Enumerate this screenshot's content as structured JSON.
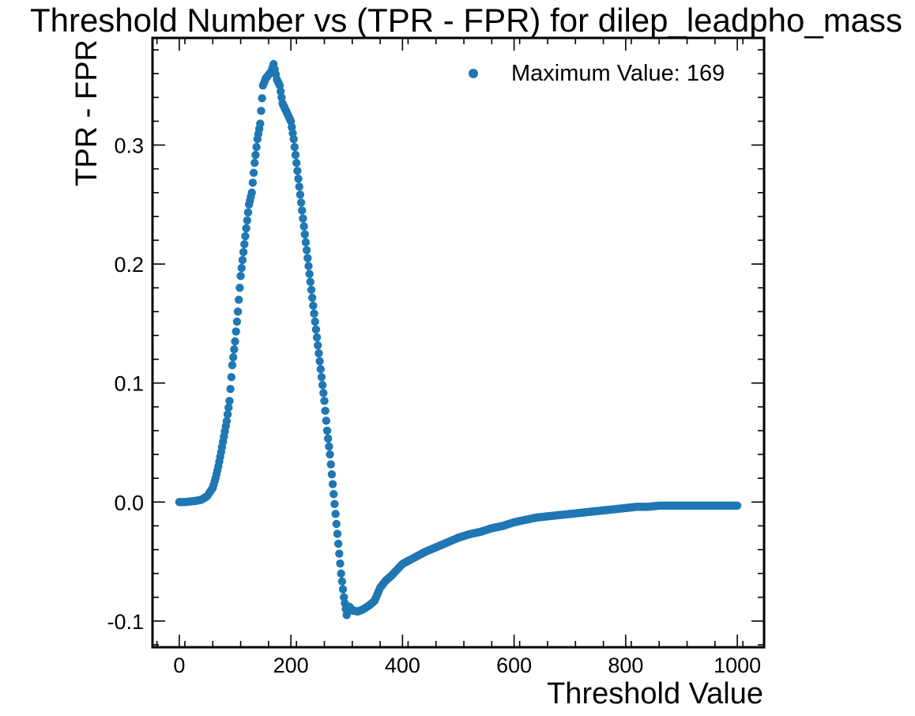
{
  "chart_data": {
    "type": "scatter",
    "title": "Threshold Number vs (TPR - FPR) for dilep_leadpho_mass",
    "xlabel": "Threshold Value",
    "ylabel": "TPR - FPR",
    "xlim": [
      -48,
      1048
    ],
    "ylim": [
      -0.122,
      0.39
    ],
    "xticks": [
      0,
      200,
      400,
      600,
      800,
      1000
    ],
    "xtick_labels": [
      "0",
      "200",
      "400",
      "600",
      "800",
      "1000"
    ],
    "yticks": [
      -0.1,
      0.0,
      0.1,
      0.2,
      0.3
    ],
    "ytick_labels": [
      "-0.1",
      "0.0",
      "0.1",
      "0.2",
      "0.3"
    ],
    "grid": false,
    "legend_position": "top-right",
    "legend": [
      "Maximum Value:  169"
    ],
    "color": "#1f77b4",
    "series": [
      {
        "name": "Maximum Value:  169",
        "points": [
          [
            0,
            0.0
          ],
          [
            10,
            0.0
          ],
          [
            20,
            0.0005
          ],
          [
            30,
            0.001
          ],
          [
            40,
            0.002
          ],
          [
            50,
            0.005
          ],
          [
            60,
            0.012
          ],
          [
            65,
            0.02
          ],
          [
            70,
            0.03
          ],
          [
            75,
            0.042
          ],
          [
            80,
            0.055
          ],
          [
            85,
            0.068
          ],
          [
            90,
            0.085
          ],
          [
            95,
            0.115
          ],
          [
            100,
            0.135
          ],
          [
            105,
            0.16
          ],
          [
            110,
            0.19
          ],
          [
            115,
            0.21
          ],
          [
            120,
            0.23
          ],
          [
            125,
            0.25
          ],
          [
            130,
            0.26
          ],
          [
            135,
            0.285
          ],
          [
            140,
            0.305
          ],
          [
            145,
            0.318
          ],
          [
            150,
            0.35
          ],
          [
            155,
            0.356
          ],
          [
            160,
            0.359
          ],
          [
            165,
            0.362
          ],
          [
            169,
            0.368
          ],
          [
            175,
            0.355
          ],
          [
            180,
            0.35
          ],
          [
            185,
            0.335
          ],
          [
            190,
            0.33
          ],
          [
            195,
            0.325
          ],
          [
            200,
            0.32
          ],
          [
            205,
            0.305
          ],
          [
            210,
            0.285
          ],
          [
            215,
            0.265
          ],
          [
            220,
            0.245
          ],
          [
            225,
            0.225
          ],
          [
            230,
            0.205
          ],
          [
            235,
            0.185
          ],
          [
            240,
            0.165
          ],
          [
            245,
            0.145
          ],
          [
            250,
            0.125
          ],
          [
            255,
            0.105
          ],
          [
            260,
            0.085
          ],
          [
            265,
            0.06
          ],
          [
            270,
            0.04
          ],
          [
            275,
            0.015
          ],
          [
            280,
            -0.01
          ],
          [
            285,
            -0.035
          ],
          [
            290,
            -0.06
          ],
          [
            295,
            -0.08
          ],
          [
            300,
            -0.095
          ],
          [
            305,
            -0.088
          ],
          [
            310,
            -0.091
          ],
          [
            320,
            -0.092
          ],
          [
            330,
            -0.09
          ],
          [
            340,
            -0.087
          ],
          [
            350,
            -0.083
          ],
          [
            360,
            -0.072
          ],
          [
            370,
            -0.066
          ],
          [
            380,
            -0.062
          ],
          [
            390,
            -0.057
          ],
          [
            400,
            -0.052
          ],
          [
            420,
            -0.047
          ],
          [
            440,
            -0.042
          ],
          [
            460,
            -0.038
          ],
          [
            480,
            -0.034
          ],
          [
            500,
            -0.03
          ],
          [
            520,
            -0.027
          ],
          [
            540,
            -0.025
          ],
          [
            560,
            -0.022
          ],
          [
            580,
            -0.02
          ],
          [
            600,
            -0.017
          ],
          [
            620,
            -0.015
          ],
          [
            640,
            -0.013
          ],
          [
            660,
            -0.012
          ],
          [
            680,
            -0.011
          ],
          [
            700,
            -0.01
          ],
          [
            720,
            -0.009
          ],
          [
            740,
            -0.008
          ],
          [
            760,
            -0.007
          ],
          [
            780,
            -0.006
          ],
          [
            800,
            -0.005
          ],
          [
            820,
            -0.004
          ],
          [
            840,
            -0.004
          ],
          [
            860,
            -0.003
          ],
          [
            880,
            -0.003
          ],
          [
            900,
            -0.003
          ],
          [
            920,
            -0.003
          ],
          [
            940,
            -0.003
          ],
          [
            960,
            -0.003
          ],
          [
            980,
            -0.003
          ],
          [
            1000,
            -0.003
          ]
        ]
      }
    ]
  }
}
